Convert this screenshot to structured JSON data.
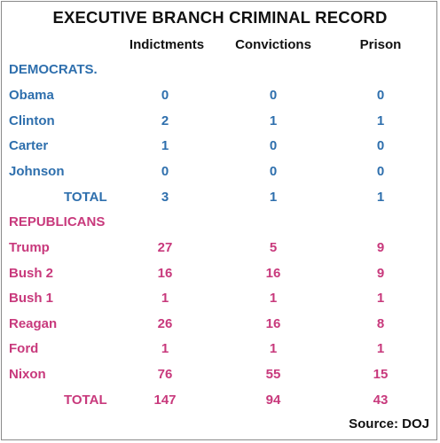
{
  "title": "EXECUTIVE BRANCH CRIMINAL RECORD",
  "columns": [
    "Indictments",
    "Convictions",
    "Prison"
  ],
  "colors": {
    "democrat": "#2e6fad",
    "republican": "#c8397c"
  },
  "democrats": {
    "heading": "DEMOCRATS.",
    "rows": [
      {
        "name": "Obama",
        "values": [
          "0",
          "0",
          "0"
        ]
      },
      {
        "name": "Clinton",
        "values": [
          "2",
          "1",
          "1"
        ]
      },
      {
        "name": "Carter",
        "values": [
          "1",
          "0",
          "0"
        ]
      },
      {
        "name": "Johnson",
        "values": [
          "0",
          "0",
          "0"
        ]
      }
    ],
    "total": {
      "label": "TOTAL",
      "values": [
        "3",
        "1",
        "1"
      ]
    }
  },
  "republicans": {
    "heading": "REPUBLICANS",
    "rows": [
      {
        "name": "Trump",
        "values": [
          "27",
          "5",
          "9"
        ]
      },
      {
        "name": "Bush 2",
        "values": [
          "16",
          "16",
          "9"
        ]
      },
      {
        "name": "Bush 1",
        "values": [
          "1",
          "1",
          "1"
        ]
      },
      {
        "name": "Reagan",
        "values": [
          "26",
          "16",
          "8"
        ]
      },
      {
        "name": "Ford",
        "values": [
          "1",
          "1",
          "1"
        ]
      },
      {
        "name": "Nixon",
        "values": [
          "76",
          "55",
          "15"
        ]
      }
    ],
    "total": {
      "label": "TOTAL",
      "values": [
        "147",
        "94",
        "43"
      ]
    }
  },
  "source": "Source: DOJ"
}
